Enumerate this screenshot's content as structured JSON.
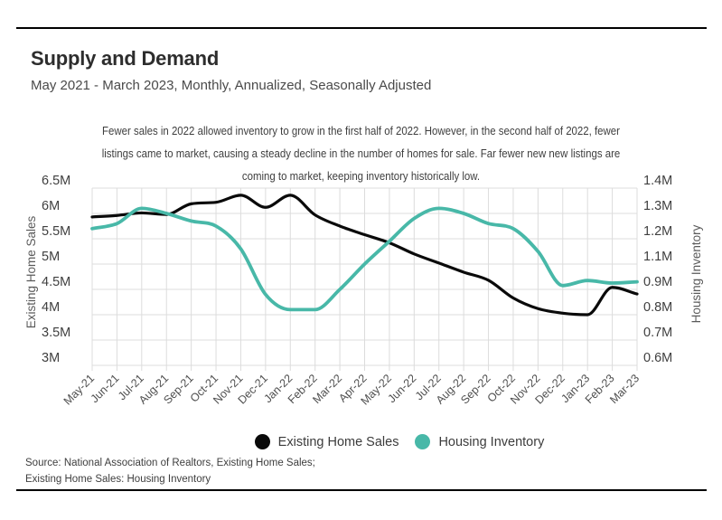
{
  "page": {
    "title": "Supply and Demand",
    "subtitle": "May 2021 - March 2023, Monthly, Annualized, Seasonally Adjusted",
    "description_lines": [
      "Fewer sales in 2022 allowed inventory to grow in the first half of 2022. However, in the second half of 2022, fewer",
      "listings came to market, causing a steady decline in the number of homes for sale. Far fewer new new listings are",
      "coming to market, keeping inventory historically low."
    ]
  },
  "source": {
    "line1": "Source:  National Association of Realtors, Existing Home Sales;",
    "line2": "Existing Home Sales: Housing Inventory"
  },
  "legend": {
    "items": [
      {
        "label": "Existing Home Sales",
        "color": "#0a0a0a"
      },
      {
        "label": "Housing Inventory",
        "color": "#48b8a8"
      }
    ]
  },
  "colors": {
    "sales_line": "#0a0a0a",
    "inventory_line": "#48b8a8",
    "gridline": "#dcdcdc",
    "tick_label": "#3f3f3f",
    "month_label": "#4f4f4f"
  },
  "chart_data": {
    "type": "line",
    "title": "Supply and Demand",
    "subtitle": "May 2021 - March 2023, Monthly, Annualized, Seasonally Adjusted",
    "grid": true,
    "legend_position": "bottom",
    "categories": [
      "May-21",
      "Jun-21",
      "Jul-21",
      "Aug-21",
      "Sep-21",
      "Oct-21",
      "Nov-21",
      "Dec-21",
      "Jan-22",
      "Feb-22",
      "Mar-22",
      "Apr-22",
      "May-22",
      "Jun-22",
      "Jul-22",
      "Aug-22",
      "Sep-22",
      "Oct-22",
      "Nov-22",
      "Dec-22",
      "Jan-23",
      "Feb-23",
      "Mar-23"
    ],
    "series": [
      {
        "name": "Existing Home Sales",
        "axis": "left",
        "unit": "millions",
        "values": [
          5.93,
          5.96,
          6.01,
          5.98,
          6.19,
          6.22,
          6.36,
          6.12,
          6.36,
          5.97,
          5.75,
          5.58,
          5.42,
          5.2,
          5.02,
          4.84,
          4.68,
          4.33,
          4.12,
          4.03,
          4.0,
          4.54,
          4.41
        ]
      },
      {
        "name": "Housing Inventory",
        "axis": "right",
        "unit": "millions",
        "values": [
          1.24,
          1.26,
          1.32,
          1.3,
          1.27,
          1.25,
          1.16,
          0.88,
          0.82,
          0.82,
          0.9,
          1.1,
          1.19,
          1.28,
          1.32,
          1.3,
          1.26,
          1.24,
          1.15,
          0.93,
          0.97,
          0.95,
          0.96
        ]
      }
    ],
    "left_axis": {
      "title": "Existing Home Sales",
      "tick_labels": [
        "6.5M",
        "6M",
        "5.5M",
        "5M",
        "4.5M",
        "4M",
        "3.5M",
        "3M"
      ],
      "tick_values": [
        6.5,
        6.0,
        5.5,
        5.0,
        4.5,
        4.0,
        3.5,
        3.0
      ]
    },
    "right_axis": {
      "title": "Housing Inventory",
      "tick_labels": [
        "1.4M",
        "1.3M",
        "1.2M",
        "1.1M",
        "0.9M",
        "0.8M",
        "0.7M",
        "0.6M"
      ],
      "tick_values": [
        1.4,
        1.3,
        1.2,
        1.1,
        0.9,
        0.8,
        0.7,
        0.6
      ]
    }
  }
}
